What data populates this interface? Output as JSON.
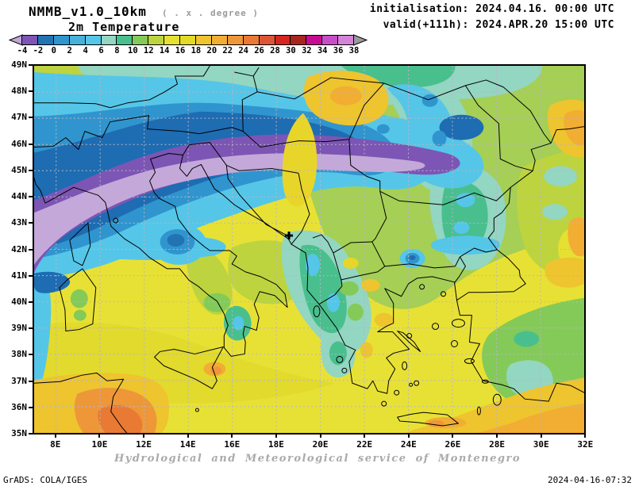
{
  "header": {
    "model_title": "NMMB_v1.0_10km",
    "model_subtitle": "( . x . degree )",
    "field_title": "2m Temperature",
    "init_line": "initialisation: 2024.04.16. 00:00 UTC",
    "valid_line": "valid(+111h): 2024.APR.20 15:00 UTC"
  },
  "colorbar": {
    "tick_labels": [
      "-4",
      "-2",
      "0",
      "2",
      "4",
      "6",
      "8",
      "10",
      "12",
      "14",
      "16",
      "18",
      "20",
      "22",
      "24",
      "26",
      "28",
      "30",
      "32",
      "34",
      "36",
      "38"
    ],
    "colors": [
      "#7d55b4",
      "#2173b2",
      "#3095ce",
      "#47b1dc",
      "#55c6e8",
      "#93d6c1",
      "#49bf8e",
      "#84ca58",
      "#bdd43e",
      "#e6e033",
      "#e3da25",
      "#eec42f",
      "#f2ad33",
      "#ee9739",
      "#e87a34",
      "#dd5537",
      "#d4261e",
      "#a8241e",
      "#c70b90",
      "#c84ec8",
      "#d583d8"
    ],
    "left_arrow_color": "#c2a6d8",
    "right_arrow_color": "#9a9a9a",
    "units": "degree"
  },
  "map": {
    "lat_labels": [
      "49N",
      "48N",
      "47N",
      "46N",
      "45N",
      "44N",
      "43N",
      "42N",
      "41N",
      "40N",
      "39N",
      "38N",
      "37N",
      "36N",
      "35N"
    ],
    "lon_labels": [
      "8E",
      "10E",
      "12E",
      "14E",
      "16E",
      "18E",
      "20E",
      "22E",
      "24E",
      "26E",
      "28E",
      "30E",
      "32E"
    ]
  },
  "footer": {
    "service_line": "Hydrological and Meteorological service of Montenegro",
    "grads_credit": "GrADS: COLA/IGES",
    "timestamp": "2024-04-16-07:32"
  }
}
